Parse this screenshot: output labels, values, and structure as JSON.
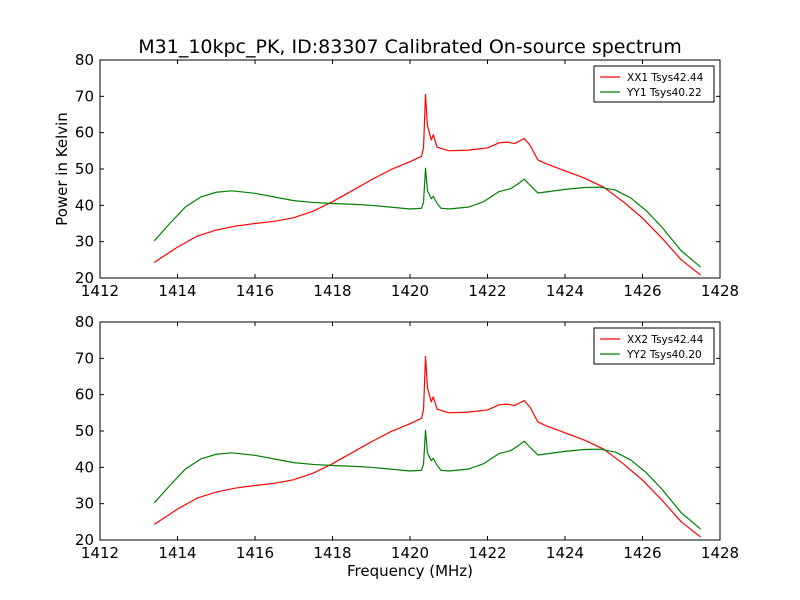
{
  "figure_title": "M31_10kpc_PK, ID:83307 Calibrated On-source spectrum",
  "colors": {
    "xx": "#ff0000",
    "yy": "#008000",
    "axes": "#000000"
  },
  "chart_data": [
    {
      "type": "line",
      "title": "M31_10kpc_PK, ID:83307 Calibrated On-source spectrum",
      "xlabel": "",
      "ylabel": "Power in Kelvin",
      "xlim": [
        1412,
        1428
      ],
      "ylim": [
        20,
        80
      ],
      "xticks": [
        1412,
        1414,
        1416,
        1418,
        1420,
        1422,
        1424,
        1426,
        1428
      ],
      "yticks": [
        20,
        30,
        40,
        50,
        60,
        70,
        80
      ],
      "grid": false,
      "legend": "top-right",
      "series": [
        {
          "name": "XX1 Tsys42.44",
          "color": "#ff0000",
          "points": [
            [
              1413.4,
              24.3
            ],
            [
              1414.0,
              28.5
            ],
            [
              1414.5,
              31.5
            ],
            [
              1415.0,
              33.2
            ],
            [
              1415.5,
              34.3
            ],
            [
              1416.0,
              35.0
            ],
            [
              1416.5,
              35.6
            ],
            [
              1417.0,
              36.6
            ],
            [
              1417.5,
              38.4
            ],
            [
              1418.0,
              41.0
            ],
            [
              1418.5,
              44.0
            ],
            [
              1419.0,
              47.0
            ],
            [
              1419.5,
              49.8
            ],
            [
              1420.0,
              52.0
            ],
            [
              1420.3,
              53.5
            ],
            [
              1420.35,
              56.0
            ],
            [
              1420.4,
              70.5
            ],
            [
              1420.45,
              62.0
            ],
            [
              1420.55,
              58.0
            ],
            [
              1420.6,
              59.4
            ],
            [
              1420.7,
              56.0
            ],
            [
              1421.0,
              55.0
            ],
            [
              1421.5,
              55.2
            ],
            [
              1422.0,
              55.8
            ],
            [
              1422.3,
              57.2
            ],
            [
              1422.5,
              57.4
            ],
            [
              1422.7,
              57.0
            ],
            [
              1422.95,
              58.4
            ],
            [
              1423.1,
              56.5
            ],
            [
              1423.3,
              52.5
            ],
            [
              1423.5,
              51.5
            ],
            [
              1424.0,
              49.5
            ],
            [
              1424.5,
              47.5
            ],
            [
              1425.0,
              45.0
            ],
            [
              1425.5,
              41.0
            ],
            [
              1426.0,
              36.5
            ],
            [
              1426.5,
              31.0
            ],
            [
              1427.0,
              25.0
            ],
            [
              1427.5,
              20.8
            ]
          ]
        },
        {
          "name": "YY1 Tsys40.22",
          "color": "#008000",
          "points": [
            [
              1413.4,
              30.2
            ],
            [
              1413.8,
              35.0
            ],
            [
              1414.2,
              39.5
            ],
            [
              1414.6,
              42.3
            ],
            [
              1415.0,
              43.6
            ],
            [
              1415.4,
              44.0
            ],
            [
              1416.0,
              43.3
            ],
            [
              1416.5,
              42.3
            ],
            [
              1417.0,
              41.3
            ],
            [
              1417.5,
              40.8
            ],
            [
              1418.0,
              40.5
            ],
            [
              1418.5,
              40.3
            ],
            [
              1419.0,
              40.0
            ],
            [
              1419.5,
              39.5
            ],
            [
              1420.0,
              39.0
            ],
            [
              1420.3,
              39.2
            ],
            [
              1420.35,
              41.0
            ],
            [
              1420.4,
              50.2
            ],
            [
              1420.45,
              44.0
            ],
            [
              1420.55,
              41.8
            ],
            [
              1420.6,
              42.5
            ],
            [
              1420.7,
              40.5
            ],
            [
              1420.8,
              39.2
            ],
            [
              1421.0,
              39.0
            ],
            [
              1421.5,
              39.5
            ],
            [
              1421.9,
              41.0
            ],
            [
              1422.3,
              43.8
            ],
            [
              1422.6,
              44.6
            ],
            [
              1422.8,
              46.0
            ],
            [
              1422.95,
              47.2
            ],
            [
              1423.1,
              45.5
            ],
            [
              1423.3,
              43.4
            ],
            [
              1423.6,
              43.8
            ],
            [
              1424.0,
              44.4
            ],
            [
              1424.5,
              44.9
            ],
            [
              1424.9,
              45.0
            ],
            [
              1425.3,
              44.2
            ],
            [
              1425.7,
              42.0
            ],
            [
              1426.1,
              38.5
            ],
            [
              1426.5,
              34.0
            ],
            [
              1427.0,
              27.5
            ],
            [
              1427.5,
              23.0
            ]
          ]
        }
      ]
    },
    {
      "type": "line",
      "title": "",
      "xlabel": "Frequency (MHz)",
      "ylabel": "",
      "xlim": [
        1412,
        1428
      ],
      "ylim": [
        20,
        80
      ],
      "xticks": [
        1412,
        1414,
        1416,
        1418,
        1420,
        1422,
        1424,
        1426,
        1428
      ],
      "yticks": [
        20,
        30,
        40,
        50,
        60,
        70,
        80
      ],
      "grid": false,
      "legend": "top-right",
      "series": [
        {
          "name": "XX2 Tsys42.44",
          "color": "#ff0000",
          "points": [
            [
              1413.4,
              24.3
            ],
            [
              1414.0,
              28.5
            ],
            [
              1414.5,
              31.5
            ],
            [
              1415.0,
              33.2
            ],
            [
              1415.5,
              34.3
            ],
            [
              1416.0,
              35.0
            ],
            [
              1416.5,
              35.6
            ],
            [
              1417.0,
              36.6
            ],
            [
              1417.5,
              38.4
            ],
            [
              1418.0,
              41.0
            ],
            [
              1418.5,
              44.0
            ],
            [
              1419.0,
              47.0
            ],
            [
              1419.5,
              49.8
            ],
            [
              1420.0,
              52.0
            ],
            [
              1420.3,
              53.5
            ],
            [
              1420.35,
              56.0
            ],
            [
              1420.4,
              70.5
            ],
            [
              1420.45,
              62.0
            ],
            [
              1420.55,
              58.0
            ],
            [
              1420.6,
              59.4
            ],
            [
              1420.7,
              56.0
            ],
            [
              1421.0,
              55.0
            ],
            [
              1421.5,
              55.2
            ],
            [
              1422.0,
              55.8
            ],
            [
              1422.3,
              57.2
            ],
            [
              1422.5,
              57.4
            ],
            [
              1422.7,
              57.0
            ],
            [
              1422.95,
              58.4
            ],
            [
              1423.1,
              56.5
            ],
            [
              1423.3,
              52.5
            ],
            [
              1423.5,
              51.5
            ],
            [
              1424.0,
              49.5
            ],
            [
              1424.5,
              47.5
            ],
            [
              1425.0,
              45.0
            ],
            [
              1425.5,
              41.0
            ],
            [
              1426.0,
              36.5
            ],
            [
              1426.5,
              31.0
            ],
            [
              1427.0,
              25.0
            ],
            [
              1427.5,
              20.8
            ]
          ]
        },
        {
          "name": "YY2 Tsys40.20",
          "color": "#008000",
          "points": [
            [
              1413.4,
              30.2
            ],
            [
              1413.8,
              35.0
            ],
            [
              1414.2,
              39.5
            ],
            [
              1414.6,
              42.3
            ],
            [
              1415.0,
              43.6
            ],
            [
              1415.4,
              44.0
            ],
            [
              1416.0,
              43.3
            ],
            [
              1416.5,
              42.3
            ],
            [
              1417.0,
              41.3
            ],
            [
              1417.5,
              40.8
            ],
            [
              1418.0,
              40.5
            ],
            [
              1418.5,
              40.3
            ],
            [
              1419.0,
              40.0
            ],
            [
              1419.5,
              39.5
            ],
            [
              1420.0,
              39.0
            ],
            [
              1420.3,
              39.2
            ],
            [
              1420.35,
              41.0
            ],
            [
              1420.4,
              50.2
            ],
            [
              1420.45,
              44.0
            ],
            [
              1420.55,
              41.8
            ],
            [
              1420.6,
              42.5
            ],
            [
              1420.7,
              40.5
            ],
            [
              1420.8,
              39.2
            ],
            [
              1421.0,
              39.0
            ],
            [
              1421.5,
              39.5
            ],
            [
              1421.9,
              41.0
            ],
            [
              1422.3,
              43.8
            ],
            [
              1422.6,
              44.6
            ],
            [
              1422.8,
              46.0
            ],
            [
              1422.95,
              47.2
            ],
            [
              1423.1,
              45.5
            ],
            [
              1423.3,
              43.4
            ],
            [
              1423.6,
              43.8
            ],
            [
              1424.0,
              44.4
            ],
            [
              1424.5,
              44.9
            ],
            [
              1424.9,
              45.0
            ],
            [
              1425.3,
              44.2
            ],
            [
              1425.7,
              42.0
            ],
            [
              1426.1,
              38.5
            ],
            [
              1426.5,
              34.0
            ],
            [
              1427.0,
              27.5
            ],
            [
              1427.5,
              23.0
            ]
          ]
        }
      ]
    }
  ]
}
